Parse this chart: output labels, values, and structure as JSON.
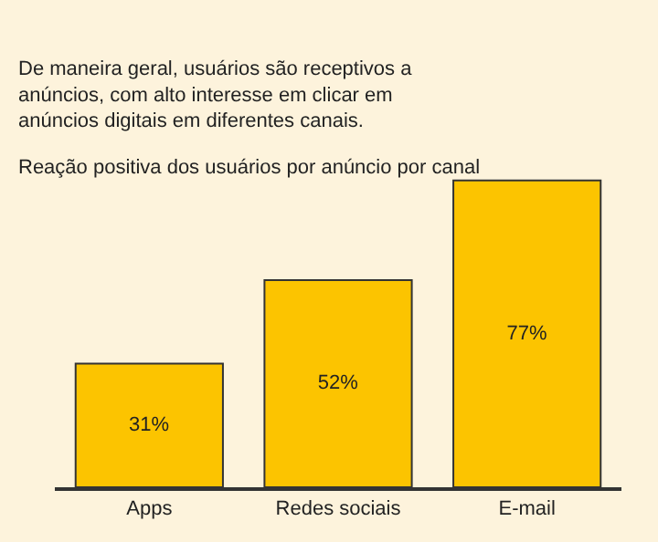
{
  "chart_data": {
    "type": "bar",
    "title": "De maneira geral, usuários são receptivos a anúncios, com alto interesse em clicar em anúncios digitais em diferentes canais.",
    "subtitle": "Reação positiva dos usuários por anúncio por canal",
    "categories": [
      "Apps",
      "Redes sociais",
      "E-mail"
    ],
    "values": [
      31,
      52,
      77
    ],
    "color": "#fcc400",
    "value_labels": [
      "31%",
      "52%",
      "77%"
    ],
    "grid": false,
    "legend": false,
    "tick_labels": "x"
  }
}
